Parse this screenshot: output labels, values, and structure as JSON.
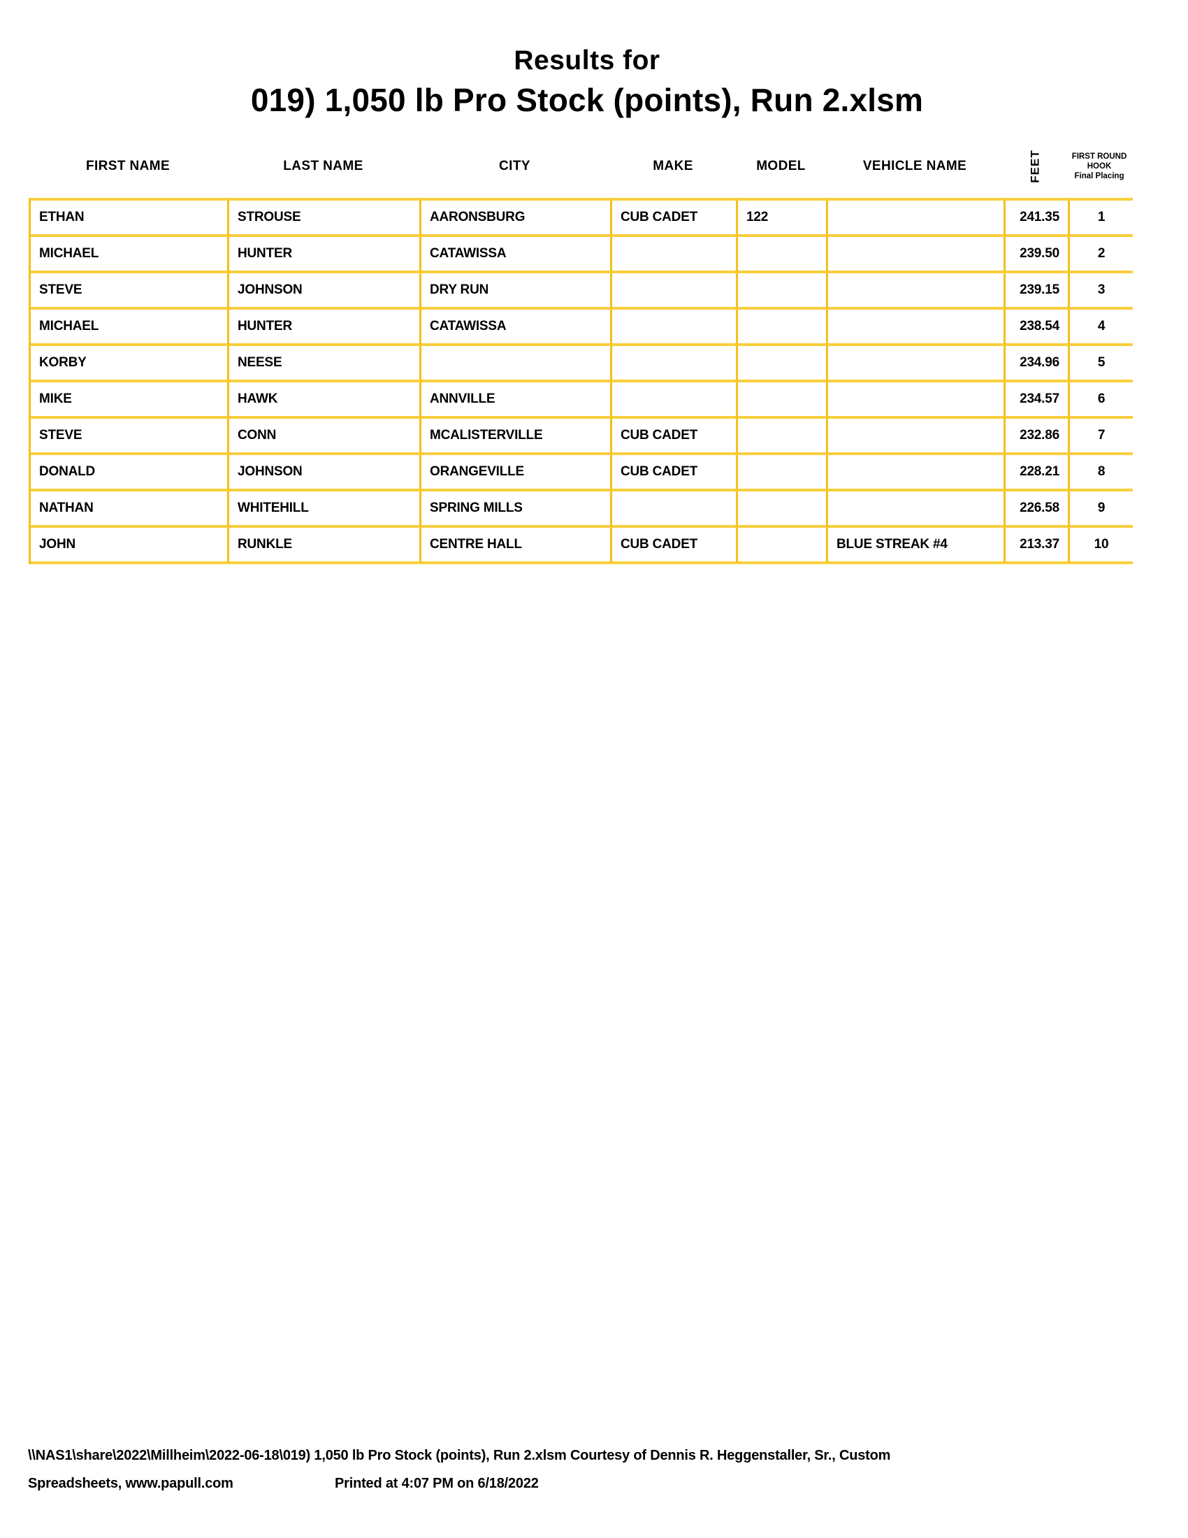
{
  "title": {
    "line1": "Results for",
    "line2": "019) 1,050 lb Pro Stock (points), Run 2.xlsm"
  },
  "table": {
    "headers": {
      "first_name": "FIRST NAME",
      "last_name": "LAST NAME",
      "city": "CITY",
      "make": "MAKE",
      "model": "MODEL",
      "vehicle_name": "VEHICLE NAME",
      "feet": "FEET",
      "hook_line1": "FIRST ROUND",
      "hook_line2": "HOOK",
      "hook_line3": "Final Placing"
    },
    "rows": [
      {
        "first_name": "ETHAN",
        "last_name": "STROUSE",
        "city": "AARONSBURG",
        "make": "CUB CADET",
        "model": "122",
        "vehicle_name": "",
        "feet": "241.35",
        "placing": "1"
      },
      {
        "first_name": "MICHAEL",
        "last_name": "HUNTER",
        "city": "CATAWISSA",
        "make": "",
        "model": "",
        "vehicle_name": "",
        "feet": "239.50",
        "placing": "2"
      },
      {
        "first_name": "STEVE",
        "last_name": "JOHNSON",
        "city": "DRY RUN",
        "make": "",
        "model": "",
        "vehicle_name": "",
        "feet": "239.15",
        "placing": "3"
      },
      {
        "first_name": "MICHAEL",
        "last_name": "HUNTER",
        "city": "CATAWISSA",
        "make": "",
        "model": "",
        "vehicle_name": "",
        "feet": "238.54",
        "placing": "4"
      },
      {
        "first_name": "KORBY",
        "last_name": "NEESE",
        "city": "",
        "make": "",
        "model": "",
        "vehicle_name": "",
        "feet": "234.96",
        "placing": "5"
      },
      {
        "first_name": "MIKE",
        "last_name": "HAWK",
        "city": "ANNVILLE",
        "make": "",
        "model": "",
        "vehicle_name": "",
        "feet": "234.57",
        "placing": "6"
      },
      {
        "first_name": "STEVE",
        "last_name": "CONN",
        "city": "MCALISTERVILLE",
        "make": "CUB CADET",
        "model": "",
        "vehicle_name": "",
        "feet": "232.86",
        "placing": "7"
      },
      {
        "first_name": "DONALD",
        "last_name": "JOHNSON",
        "city": "ORANGEVILLE",
        "make": "CUB CADET",
        "model": "",
        "vehicle_name": "",
        "feet": "228.21",
        "placing": "8"
      },
      {
        "first_name": "NATHAN",
        "last_name": "WHITEHILL",
        "city": "SPRING MILLS",
        "make": "",
        "model": "",
        "vehicle_name": "",
        "feet": "226.58",
        "placing": "9"
      },
      {
        "first_name": "JOHN",
        "last_name": "RUNKLE",
        "city": "CENTRE HALL",
        "make": "CUB CADET",
        "model": "",
        "vehicle_name": "BLUE STREAK #4",
        "feet": "213.37",
        "placing": "10"
      }
    ]
  },
  "footer": {
    "line1": "\\\\NAS1\\share\\2022\\Millheim\\2022-06-18\\019) 1,050 lb Pro Stock (points), Run 2.xlsm  Courtesy of Dennis R. Heggenstaller, Sr., Custom",
    "line2_left": "Spreadsheets, www.papull.com",
    "printed": "Printed at 4:07 PM on 6/18/2022"
  },
  "colors": {
    "grid_vertical": "#F5C018",
    "grid_horizontal": "#F8CE3C",
    "text": "#000000",
    "background": "#FFFFFF"
  }
}
